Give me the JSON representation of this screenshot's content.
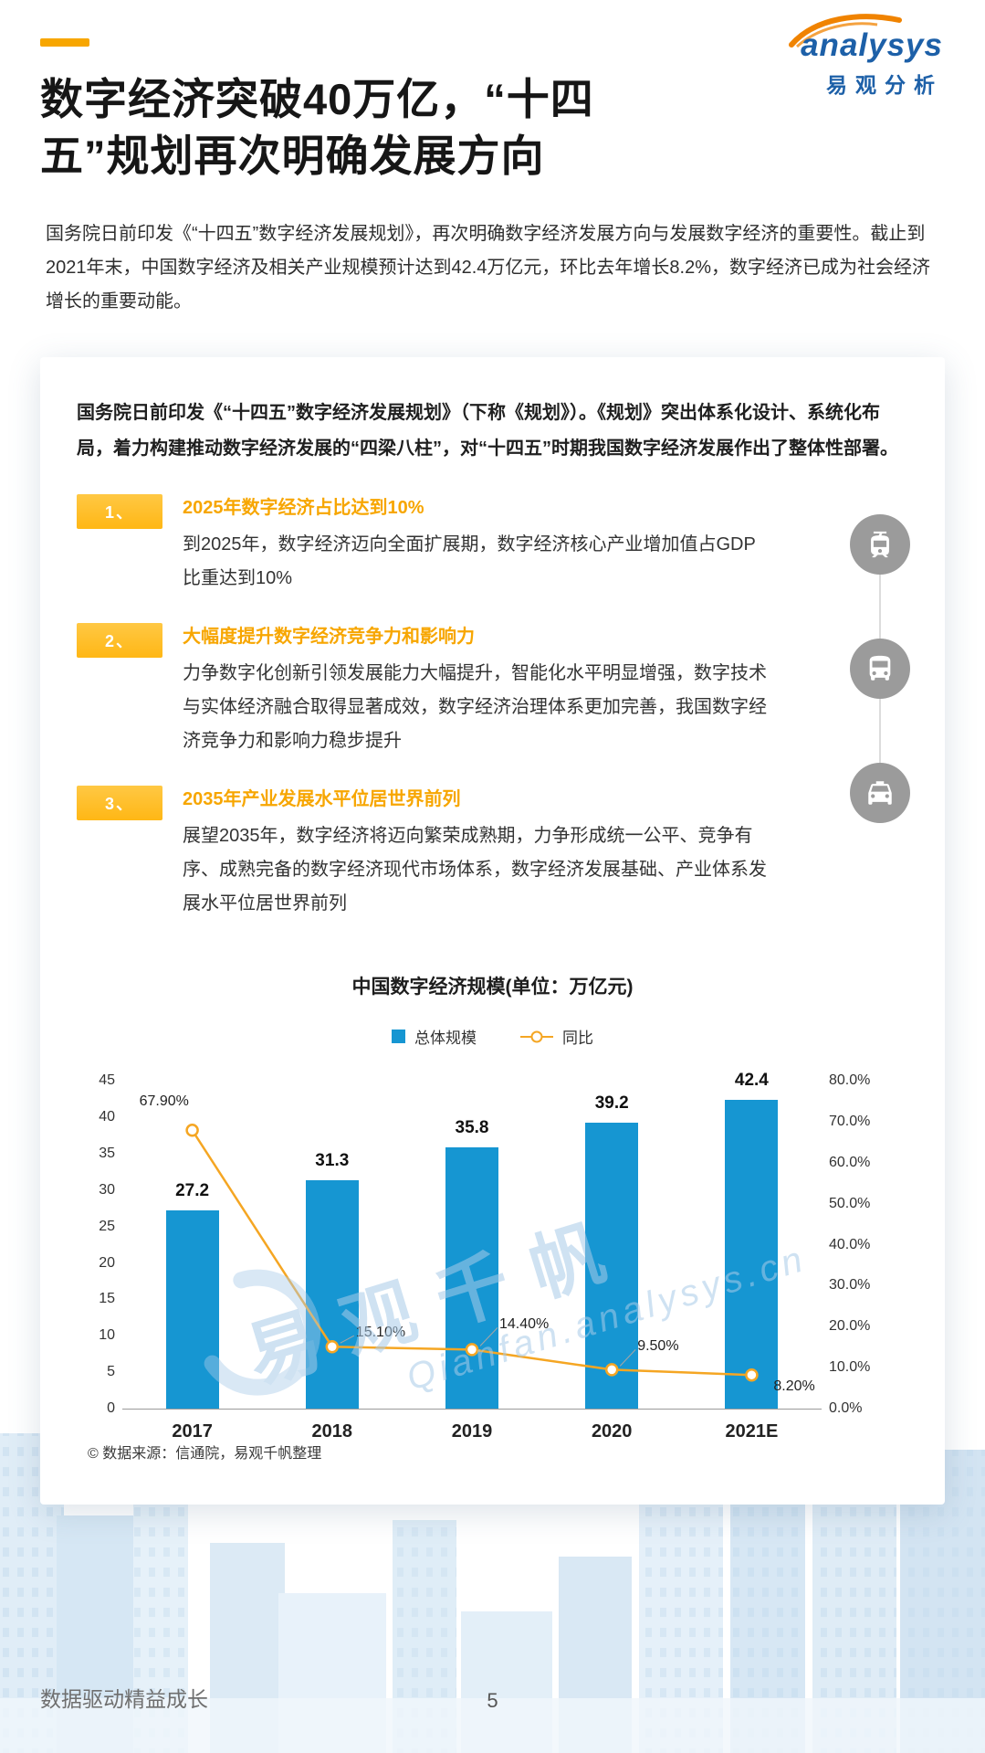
{
  "logo": {
    "brand": "analysys",
    "brand_cn": "易观分析"
  },
  "header": {
    "title_line1": "数字经济突破40万亿，“十四",
    "title_line2": "五”规划再次明确发展方向",
    "intro": "国务院日前印发《“十四五”数字经济发展规划》，再次明确数字经济发展方向与发展数字经济的重要性。截止到2021年末，中国数字经济及相关产业规模预计达到42.4万亿元，环比去年增长8.2%，数字经济已成为社会经济增长的重要动能。"
  },
  "card": {
    "lead": "国务院日前印发《“十四五”数字经济发展规划》（下称《规划》）。《规划》突出体系化设计、系统化布局，着力构建推动数字经济发展的“四梁八柱”，对“十四五”时期我国数字经济发展作出了整体性部署。",
    "items": [
      {
        "num": "1、",
        "heading": "2025年数字经济占比达到10%",
        "body": "到2025年，数字经济迈向全面扩展期，数字经济核心产业增加值占GDP比重达到10%"
      },
      {
        "num": "2、",
        "heading": "大幅度提升数字经济竞争力和影响力",
        "body": "力争数字化创新引领发展能力大幅提升，智能化水平明显增强，数字技术与实体经济融合取得显著成效，数字经济治理体系更加完善，我国数字经济竞争力和影响力稳步提升"
      },
      {
        "num": "3、",
        "heading": "2035年产业发展水平位居世界前列",
        "body": "展望2035年，数字经济将迈向繁荣成熟期，力争形成统一公平、竞争有序、成熟完备的数字经济现代市场体系，数字经济发展基础、产业体系发展水平位居世界前列"
      }
    ],
    "rail_icons": [
      "tram-icon",
      "smart-bus-icon",
      "taxi-icon"
    ]
  },
  "chart_data": {
    "type": "bar+line",
    "title": "中国数字经济规模(单位：万亿元)",
    "categories": [
      "2017",
      "2018",
      "2019",
      "2020",
      "2021E"
    ],
    "series": [
      {
        "name": "总体规模",
        "type": "bar",
        "axis": "left",
        "values": [
          27.2,
          31.3,
          35.8,
          39.2,
          42.4
        ]
      },
      {
        "name": "同比",
        "type": "line",
        "axis": "right",
        "values": [
          67.9,
          15.1,
          14.4,
          9.5,
          8.2
        ],
        "labels": [
          "67.90%",
          "15.10%",
          "14.40%",
          "9.50%",
          "8.20%"
        ]
      }
    ],
    "left_axis": {
      "min": 0,
      "max": 45,
      "ticks": [
        0,
        5,
        10,
        15,
        20,
        25,
        30,
        35,
        40,
        45
      ]
    },
    "right_axis": {
      "min": 0,
      "max": 80,
      "ticks": [
        "0.0%",
        "10.0%",
        "20.0%",
        "30.0%",
        "40.0%",
        "50.0%",
        "60.0%",
        "70.0%",
        "80.0%"
      ]
    },
    "legend_position": "top",
    "grid": false
  },
  "watermark": {
    "cn": "易观千帆",
    "en": "Qianfan.analysys.cn"
  },
  "source_note": "© 数据来源：信通院，易观千帆整理",
  "footer": {
    "slogan": "数据驱动精益成长",
    "page_number": "5"
  },
  "colors": {
    "bar": "#1696D2",
    "line": "#F5A623",
    "accent": "#F7A600",
    "badge": "#FFB715",
    "heading_orange": "#F7A600",
    "logo_blue": "#1D60A8",
    "logo_orange": "#F08300",
    "watermark_blue": "#A9CBE8",
    "circle_gray": "#9B9B9B"
  }
}
